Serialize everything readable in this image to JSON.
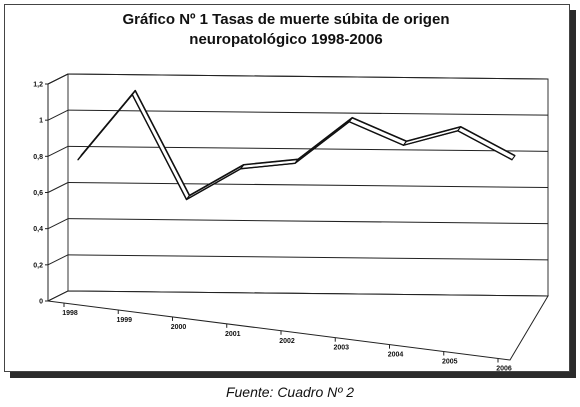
{
  "chart_data": {
    "type": "line",
    "title_lines": [
      "Gráfico Nº 1 Tasas de muerte súbita de origen",
      "neuropatológico 1998-2006"
    ],
    "x": [
      "1998",
      "1999",
      "2000",
      "2001",
      "2002",
      "2003",
      "2004",
      "2005",
      "2006"
    ],
    "series": [
      {
        "values": [
          0.82,
          1.18,
          0.6,
          0.77,
          0.8,
          1.03,
          0.9,
          0.98,
          0.82
        ]
      }
    ],
    "yticks": [
      "0",
      "0,2",
      "0,4",
      "0,6",
      "0,8",
      "1",
      "1,2"
    ],
    "ylim": [
      0,
      1.2
    ],
    "grid": true,
    "legend": false,
    "style": "3d-ribbon"
  },
  "caption": "Fuente: Cuadro Nº 2"
}
